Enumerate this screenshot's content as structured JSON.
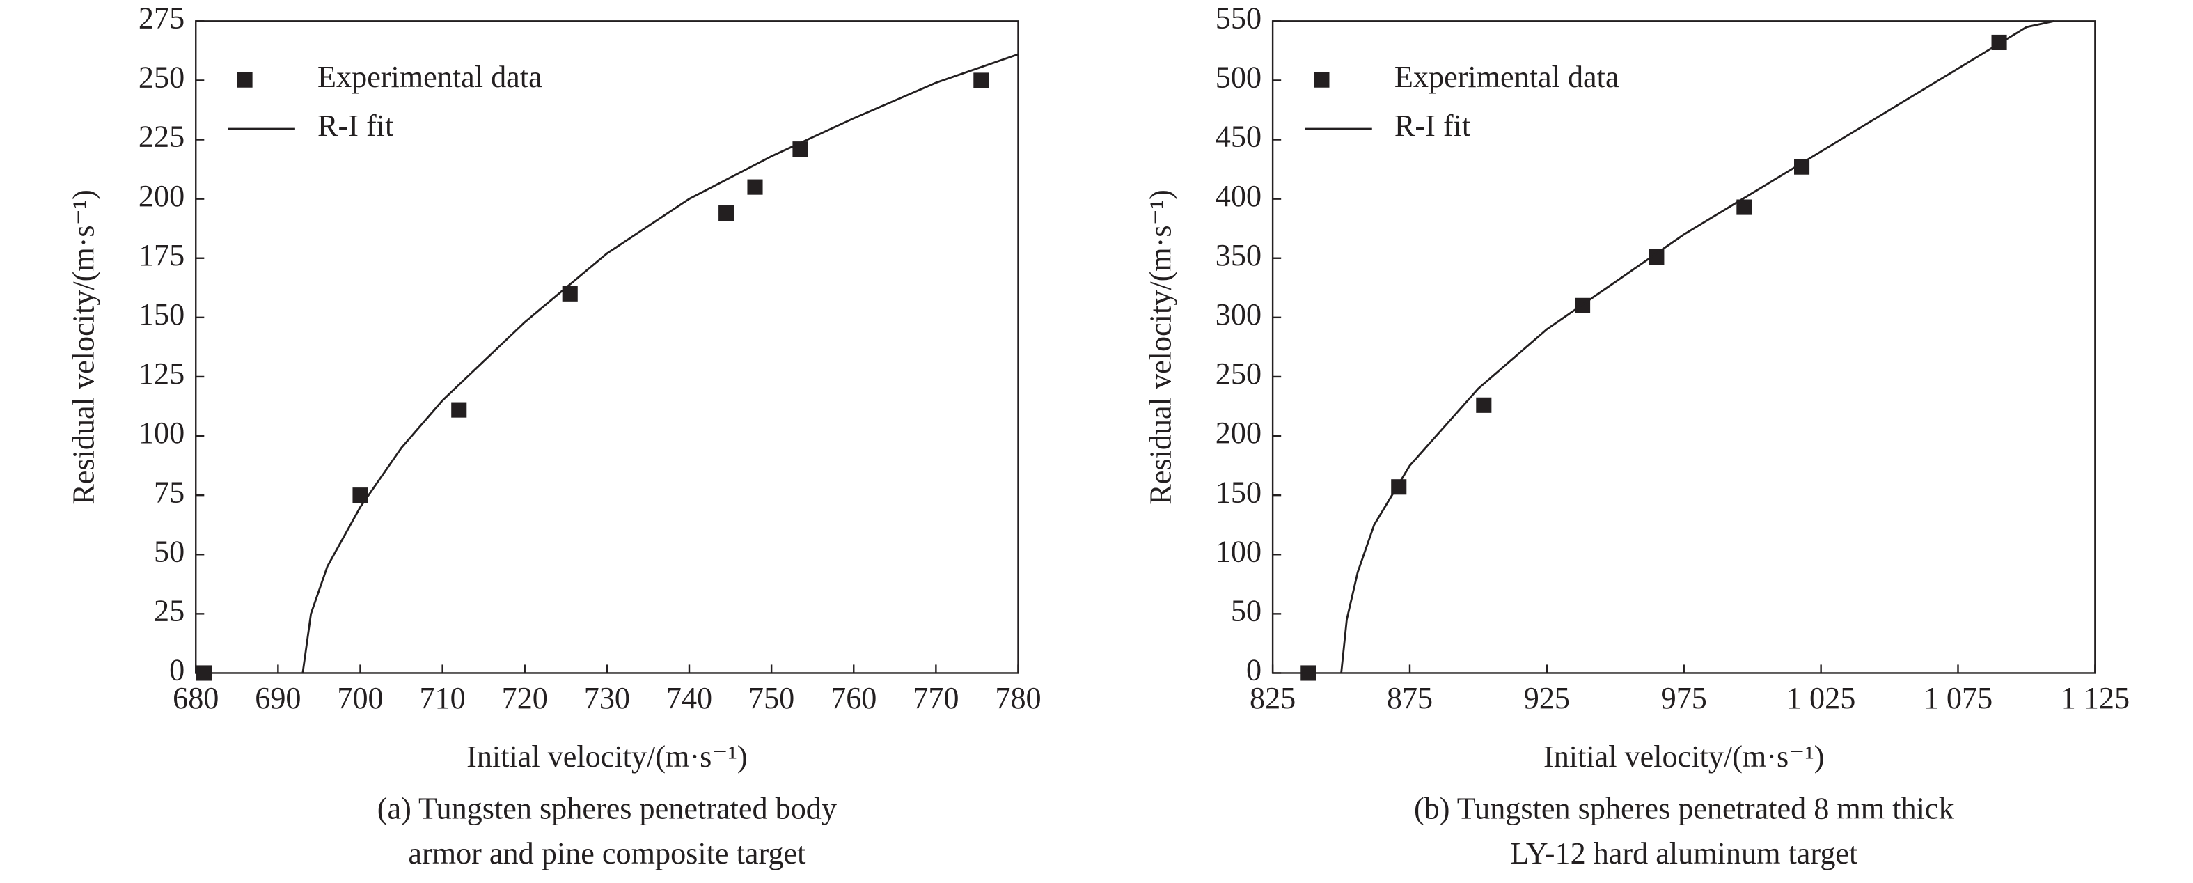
{
  "chart_data": [
    {
      "type": "scatter",
      "caption": [
        "(a) Tungsten spheres penetrated body",
        "armor and pine composite target"
      ],
      "xlabel": "Initial velocity/(m·s⁻¹)",
      "ylabel": "Residual velocity/(m·s⁻¹)",
      "xlim": [
        680,
        780
      ],
      "ylim": [
        0,
        275
      ],
      "xticks": [
        680,
        690,
        700,
        710,
        720,
        730,
        740,
        750,
        760,
        770,
        780
      ],
      "yticks": [
        0,
        25,
        50,
        75,
        100,
        125,
        150,
        175,
        200,
        225,
        250,
        275
      ],
      "legend": "upper left",
      "series": [
        {
          "name": "Experimental data",
          "kind": "scatter",
          "color": "#231f20",
          "x": [
            681,
            700,
            712,
            725.5,
            744.5,
            748,
            753.5,
            775.5
          ],
          "values": [
            0,
            75,
            111,
            160,
            194,
            205,
            221,
            250
          ]
        },
        {
          "name": "R-I fit",
          "kind": "line",
          "color": "#231f20",
          "x": [
            693,
            694,
            696,
            700,
            705,
            710,
            720,
            730,
            740,
            750,
            760,
            770,
            780
          ],
          "values": [
            0,
            25,
            45,
            70,
            95,
            115,
            148,
            177,
            200,
            218,
            234,
            249,
            261
          ]
        }
      ]
    },
    {
      "type": "scatter",
      "caption": [
        "(b) Tungsten spheres penetrated 8 mm thick",
        "LY-12 hard aluminum target"
      ],
      "xlabel": "Initial velocity/(m·s⁻¹)",
      "ylabel": "Residual velocity/(m·s⁻¹)",
      "xlim": [
        825,
        1125
      ],
      "ylim": [
        0,
        550
      ],
      "xticks": [
        825,
        875,
        925,
        975,
        {
          "value": 1025,
          "label": "1 025"
        },
        {
          "value": 1075,
          "label": "1 075"
        },
        {
          "value": 1125,
          "label": "1 125"
        }
      ],
      "yticks": [
        0,
        50,
        100,
        150,
        200,
        250,
        300,
        350,
        400,
        450,
        500,
        550
      ],
      "legend": "upper left",
      "series": [
        {
          "name": "Experimental data",
          "kind": "scatter",
          "color": "#231f20",
          "x": [
            838,
            871,
            902,
            938,
            965,
            997,
            1018,
            1090
          ],
          "values": [
            0,
            157,
            226,
            310,
            351,
            393,
            427,
            532
          ]
        },
        {
          "name": "R-I fit",
          "kind": "line",
          "color": "#231f20",
          "x": [
            850,
            852,
            856,
            862,
            875,
            900,
            925,
            950,
            975,
            1000,
            1025,
            1050,
            1075,
            1100,
            1110
          ],
          "values": [
            0,
            45,
            85,
            125,
            175,
            240,
            290,
            330,
            370,
            405,
            440,
            475,
            510,
            545,
            550
          ]
        }
      ]
    }
  ]
}
